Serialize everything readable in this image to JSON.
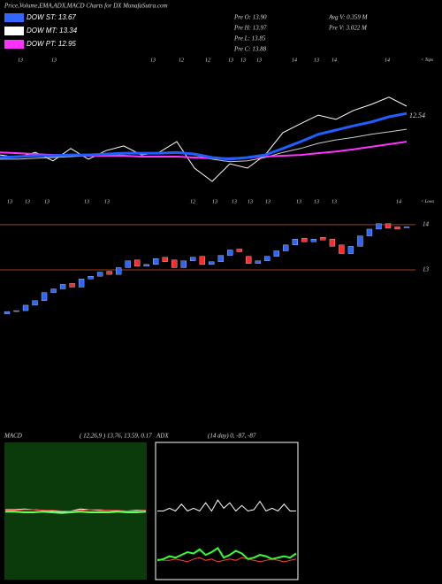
{
  "header": {
    "title": "Price,Volume,EMA,ADX,MACD Charts for DX MunafaSutra.com",
    "dow": [
      {
        "label": "DOW ST: 13.67",
        "color": "#3366ff"
      },
      {
        "label": "DOW MT: 13.34",
        "color": "#ffffff"
      },
      {
        "label": "DOW PT: 12.95",
        "color": "#ff33ff"
      }
    ],
    "prev": [
      "Pre  O: 13.90",
      "Pre  H: 13.97",
      "Pre  L: 13.85",
      "Pre  C: 13.88"
    ],
    "vol": [
      "Avg V: 0.359 M",
      "Pre  V: 3.022  M"
    ],
    "dates_top": [
      "13",
      "13",
      "13",
      "12",
      "12",
      "13",
      "13",
      "13",
      "14",
      "13",
      "14",
      "14"
    ],
    "dates_bottom": [
      "13",
      "13",
      "13",
      "13",
      "13",
      "12",
      "13",
      "13",
      "13",
      "13",
      "13",
      "13",
      "13",
      "14"
    ],
    "tops_label": "< Tops",
    "lows_label": "< Lows"
  },
  "chart_data": [
    {
      "type": "line",
      "ylim": [
        11.8,
        14.8
      ],
      "annotation": "12.54",
      "series": [
        {
          "color": "#ffffff",
          "width": 1,
          "values": [
            12.73,
            12.67,
            12.79,
            12.59,
            12.88,
            12.63,
            12.83,
            12.94,
            12.73,
            12.79,
            13.04,
            12.42,
            12.11,
            12.52,
            12.42,
            12.73,
            13.25,
            13.46,
            13.66,
            13.56,
            13.77,
            13.91,
            14.08,
            13.87
          ]
        },
        {
          "color": "#cccccc",
          "width": 1,
          "values": [
            12.63,
            12.63,
            12.65,
            12.67,
            12.69,
            12.71,
            12.73,
            12.75,
            12.77,
            12.79,
            12.79,
            12.73,
            12.63,
            12.57,
            12.59,
            12.67,
            12.79,
            12.88,
            13.0,
            13.08,
            13.14,
            13.21,
            13.27,
            13.33
          ]
        },
        {
          "color": "#ff33ff",
          "width": 2,
          "values": [
            12.79,
            12.77,
            12.75,
            12.73,
            12.73,
            12.71,
            12.71,
            12.71,
            12.69,
            12.69,
            12.69,
            12.67,
            12.65,
            12.65,
            12.67,
            12.69,
            12.71,
            12.73,
            12.77,
            12.81,
            12.86,
            12.92,
            12.98,
            13.04
          ]
        },
        {
          "color": "#1f5fff",
          "width": 3,
          "values": [
            12.67,
            12.69,
            12.71,
            12.71,
            12.73,
            12.73,
            12.75,
            12.77,
            12.77,
            12.77,
            12.79,
            12.75,
            12.67,
            12.63,
            12.67,
            12.73,
            12.88,
            13.04,
            13.21,
            13.31,
            13.41,
            13.5,
            13.62,
            13.7
          ]
        }
      ]
    },
    {
      "type": "candlestick",
      "ylim": [
        11.73,
        14.27
      ],
      "yticks": [
        13,
        14
      ],
      "up_color": "#2a66ff",
      "down_color": "#ff2a2a",
      "open": [
        12.03,
        12.08,
        12.1,
        12.22,
        12.32,
        12.5,
        12.58,
        12.7,
        12.62,
        12.8,
        12.86,
        12.97,
        12.9,
        13.05,
        13.22,
        13.08,
        13.12,
        13.28,
        13.22,
        13.05,
        13.2,
        13.3,
        13.12,
        13.18,
        13.32,
        13.46,
        13.3,
        13.14,
        13.2,
        13.3,
        13.42,
        13.55,
        13.7,
        13.62,
        13.72,
        13.68,
        13.55,
        13.36,
        13.52,
        13.75,
        13.9,
        14.02,
        13.95,
        13.93
      ],
      "close": [
        12.08,
        12.1,
        12.22,
        12.32,
        12.5,
        12.58,
        12.68,
        12.62,
        12.8,
        12.86,
        12.95,
        12.9,
        13.05,
        13.2,
        13.08,
        13.12,
        13.25,
        13.18,
        13.05,
        13.2,
        13.28,
        13.12,
        13.18,
        13.32,
        13.44,
        13.4,
        13.14,
        13.2,
        13.3,
        13.42,
        13.55,
        13.68,
        13.62,
        13.68,
        13.66,
        13.52,
        13.36,
        13.52,
        13.75,
        13.9,
        14.02,
        13.92,
        13.9,
        13.95
      ]
    },
    {
      "type": "line",
      "title": "MACD",
      "subtitle": "( 12,26,9 ) 13.76, 13.59, 0.17",
      "ylim": [
        -1,
        1
      ],
      "background": "#0b3a0b",
      "series": [
        {
          "color": "#ffffff",
          "width": 1,
          "values": [
            0.02,
            0.02,
            0.03,
            0.02,
            0.01,
            0.0,
            -0.01,
            0.0,
            0.03,
            0.02,
            0.01,
            0.01,
            0.0,
            0.0,
            0.01,
            0.01
          ]
        },
        {
          "color": "#ff4040",
          "width": 1,
          "values": [
            0.01,
            0.01,
            0.02,
            0.02,
            0.01,
            0.01,
            0.0,
            0.0,
            0.01,
            0.02,
            0.02,
            0.01,
            0.01,
            0.0,
            0.0,
            0.01
          ]
        },
        {
          "color": "#66ff66",
          "width": 2,
          "values": [
            -0.01,
            -0.01,
            -0.02,
            -0.02,
            -0.01,
            -0.02,
            -0.03,
            -0.02,
            -0.01,
            -0.02,
            -0.02,
            -0.02,
            -0.01,
            -0.02,
            -0.02,
            -0.01
          ]
        }
      ]
    },
    {
      "type": "line",
      "title": "ADX",
      "subtitle": "(14  day) 0, -87, -87",
      "ylim": [
        0,
        100
      ],
      "background": "#000000",
      "series": [
        {
          "color": "#ffffff",
          "width": 1,
          "values": [
            50,
            50,
            52,
            50,
            55,
            50,
            52,
            50,
            56,
            50,
            58,
            52,
            56,
            50,
            54,
            50,
            51,
            57,
            50,
            52,
            50,
            55,
            50,
            50
          ]
        },
        {
          "color": "#ff4040",
          "width": 1,
          "values": [
            15,
            14,
            14,
            15,
            14,
            13,
            15,
            16,
            14,
            15,
            13,
            14,
            15,
            14,
            16,
            15,
            14,
            13,
            14,
            15,
            14,
            13,
            14,
            15
          ]
        },
        {
          "color": "#33ff33",
          "width": 2,
          "values": [
            14,
            15,
            17,
            16,
            18,
            20,
            19,
            22,
            18,
            20,
            23,
            16,
            18,
            21,
            19,
            15,
            16,
            18,
            17,
            15,
            16,
            17,
            16,
            19
          ]
        }
      ]
    }
  ]
}
